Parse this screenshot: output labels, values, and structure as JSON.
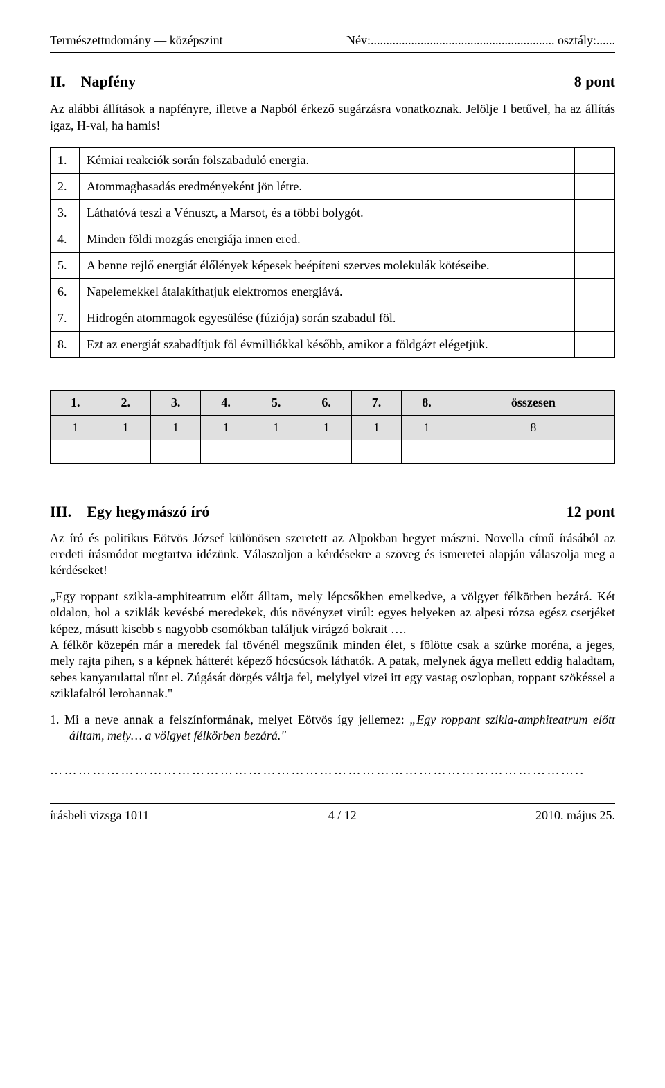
{
  "header": {
    "left": "Természettudomány — középszint",
    "right": "Név:........................................................... osztály:......"
  },
  "section2": {
    "num": "II.",
    "title": "Napfény",
    "points": "8 pont",
    "intro": "Az alábbi állítások a napfényre, illetve a Napból érkező sugárzásra vonatkoznak. Jelölje I betűvel, ha az állítás igaz, H-val, ha hamis!",
    "rows": [
      {
        "n": "1.",
        "text": "Kémiai reakciók során fölszabaduló energia."
      },
      {
        "n": "2.",
        "text": "Atommaghasadás eredményeként jön létre."
      },
      {
        "n": "3.",
        "text": "Láthatóvá teszi a Vénuszt, a Marsot, és a többi bolygót."
      },
      {
        "n": "4.",
        "text": "Minden földi mozgás energiája innen ered."
      },
      {
        "n": "5.",
        "text": "A benne rejlő energiát élőlények képesek beépíteni szerves molekulák kötéseibe."
      },
      {
        "n": "6.",
        "text": "Napelemekkel átalakíthatjuk elektromos energiává."
      },
      {
        "n": "7.",
        "text": "Hidrogén atommagok egyesülése (fúziója) során szabadul föl."
      },
      {
        "n": "8.",
        "text": "Ezt az energiát szabadítjuk föl évmilliókkal később, amikor a földgázt elégetjük."
      }
    ]
  },
  "score_table": {
    "headers": [
      "1.",
      "2.",
      "3.",
      "4.",
      "5.",
      "6.",
      "7.",
      "8.",
      "összesen"
    ],
    "values": [
      "1",
      "1",
      "1",
      "1",
      "1",
      "1",
      "1",
      "1",
      "8"
    ]
  },
  "section3": {
    "num": "III.",
    "title": "Egy hegymászó író",
    "points": "12 pont",
    "p1": "Az író és politikus Eötvös József különösen szeretett az Alpokban hegyet mászni. Novella című írásából az eredeti írásmódot megtartva idézünk. Válaszoljon a kérdésekre a szöveg és ismeretei alapján válaszolja meg a kérdéseket!",
    "p2a": "„Egy roppant szikla-amphiteatrum előtt álltam, mely lépcsőkben emelkedve, a völgyet félkörben bezárá. Két oldalon, hol a sziklák kevésbé meredekek, dús növényzet virúl: egyes helyeken az alpesi rózsa egész cserjéket képez, másutt kisebb s nagyobb csomókban találjuk virágzó bokrait ….",
    "p2b": "A félkör közepén már a meredek fal tövénél megszűnik minden élet, s fölötte csak a szürke moréna, a jeges, mely rajta pihen, s a képnek hátterét képező hócsúcsok láthatók. A patak, melynek ágya mellett eddig haladtam, sebes kanyarulattal tűnt el. Zúgását dörgés váltja fel, melylyel vizei itt egy vastag oszlopban, roppant szökéssel a sziklafalról lerohannak.\"",
    "q1_p1": "1.  Mi a neve annak a felszínformának, melyet Eötvös így jellemez:",
    "q1_p2": "„Egy roppant szikla-amphiteatrum előtt álltam, mely… a völgyet félkörben bezárá.\""
  },
  "dots": "…………………………………………………………………………………………………..",
  "footer": {
    "left": "írásbeli vizsga 1011",
    "center": "4 / 12",
    "right": "2010. május 25."
  }
}
